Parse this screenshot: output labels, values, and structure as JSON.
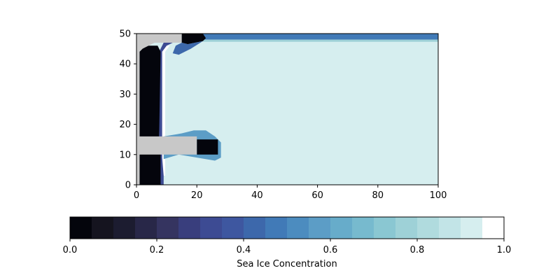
{
  "chart_data": {
    "type": "heatmap",
    "title": "",
    "xlabel": "",
    "ylabel": "",
    "xlim": [
      0,
      100
    ],
    "ylim": [
      0,
      50
    ],
    "x_ticks": [
      "0",
      "20",
      "40",
      "60",
      "80",
      "100"
    ],
    "y_ticks": [
      "0",
      "10",
      "20",
      "30",
      "40",
      "50"
    ],
    "grid": false,
    "colormap": "ice (cmocean), discrete steps",
    "mask_color": "#c8c8c8",
    "colorbar": {
      "orientation": "horizontal",
      "placement": "bottom",
      "label": "Sea Ice Concentration",
      "range": [
        0.0,
        1.0
      ],
      "ticks": [
        "0.0",
        "0.2",
        "0.4",
        "0.6",
        "0.8",
        "1.0"
      ],
      "colors": [
        "#04050c",
        "#15141f",
        "#1c1c30",
        "#282748",
        "#353460",
        "#393e7d",
        "#3d4b93",
        "#3e57a0",
        "#3d68ab",
        "#417ab7",
        "#4c8cbf",
        "#5c9dc6",
        "#67acca",
        "#77bace",
        "#8ac7d2",
        "#9ed1d7",
        "#b0dbde",
        "#c2e4e7",
        "#d6eeef",
        "#ffffff"
      ]
    },
    "regions": [
      {
        "name": "open ocean interior",
        "value": 0.92
      },
      {
        "name": "top boundary band",
        "value": 0.45
      },
      {
        "name": "western boundary strip",
        "value": 0.0
      },
      {
        "name": "north-west land mask",
        "value": null
      },
      {
        "name": "peninsula land mask",
        "value": null
      },
      {
        "name": "peninsula tip",
        "value": 0.0
      },
      {
        "name": "near-coast lead",
        "value": 1.0
      }
    ]
  }
}
